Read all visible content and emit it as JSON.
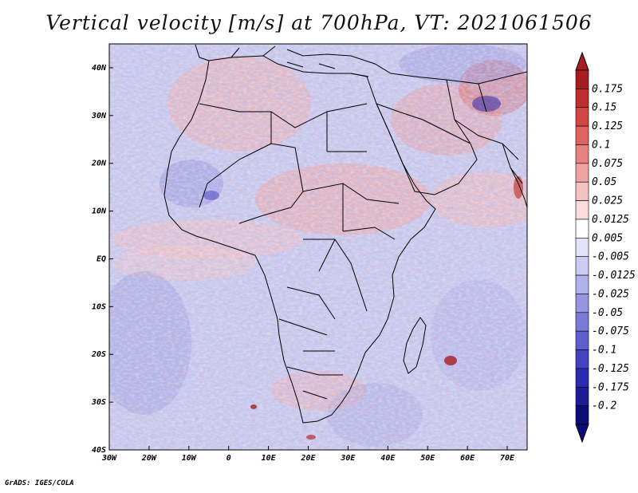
{
  "title": "Vertical velocity [m/s] at 700hPa, VT: 2021061506",
  "credit": "GrADS: IGES/COLA",
  "map": {
    "lon_range": [
      -30,
      75
    ],
    "lat_range": [
      -40,
      45
    ],
    "x_ticks": [
      "30W",
      "20W",
      "10W",
      "0",
      "10E",
      "20E",
      "30E",
      "40E",
      "50E",
      "60E",
      "70E"
    ],
    "y_ticks": [
      "40N",
      "30N",
      "20N",
      "10N",
      "EQ",
      "10S",
      "20S",
      "30S",
      "40S"
    ]
  },
  "colorbar": {
    "labels": [
      "0.175",
      "0.15",
      "0.125",
      "0.1",
      "0.075",
      "0.05",
      "0.025",
      "0.0125",
      "0.005",
      "-0.005",
      "-0.0125",
      "-0.025",
      "-0.05",
      "-0.075",
      "-0.1",
      "-0.125",
      "-0.175",
      "-0.2"
    ],
    "colors": [
      "#a51d22",
      "#bd2e31",
      "#d14545",
      "#df6262",
      "#e88282",
      "#efa2a2",
      "#f5c2c2",
      "#fadcdc",
      "#ffffff",
      "#e3e3fa",
      "#cbcbf3",
      "#b1b1ec",
      "#9595e2",
      "#7a7ad8",
      "#5e5ecc",
      "#4343bf",
      "#2b2bae",
      "#1c1c95",
      "#0c0c78"
    ]
  },
  "colors": {
    "land_border": "#000000",
    "background": "#ffffff"
  }
}
